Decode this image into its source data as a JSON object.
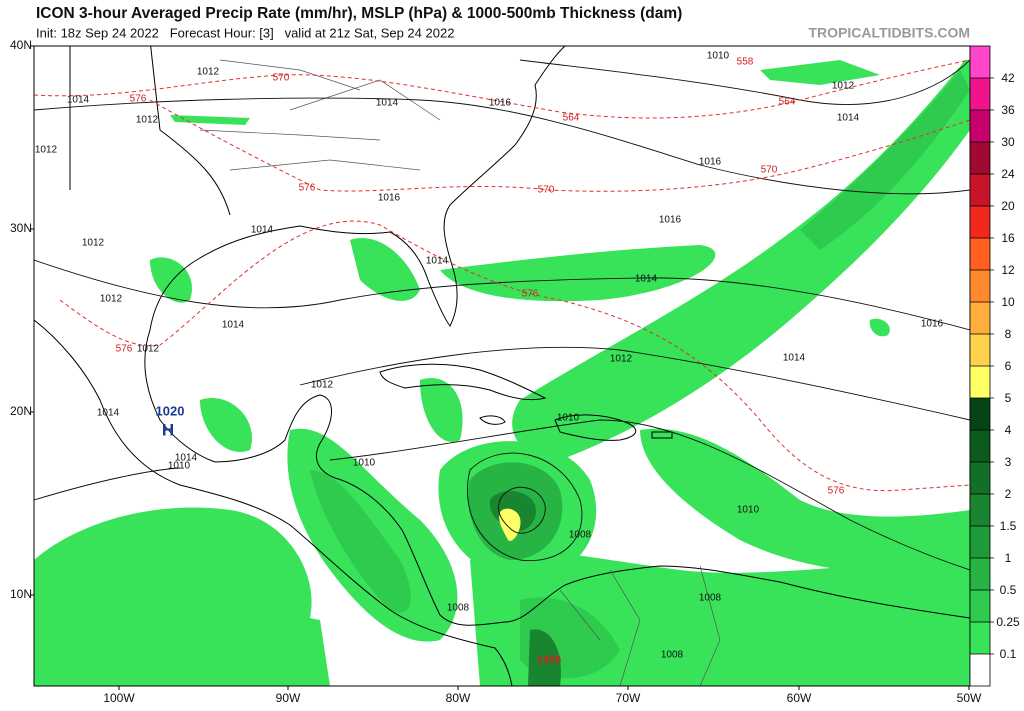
{
  "header": {
    "title": "ICON 3-hour Averaged Precip Rate (mm/hr), MSLP (hPa) & 1000-500mb Thickness (dam)",
    "subtitle": "Init: 18z Sep 24 2022   Forecast Hour: [3]   valid at 21z Sat, Sep 24 2022",
    "source": "TROPICALTIDBITS.COM"
  },
  "map": {
    "lat_labels": [
      "40N",
      "30N",
      "20N",
      "10N"
    ],
    "lon_labels": [
      "100W",
      "90W",
      "80W",
      "70W",
      "60W",
      "50W"
    ],
    "isobar_labels": [
      1012,
      1014,
      1012,
      1012,
      1014,
      1016,
      1010,
      1012,
      1014,
      1016,
      1016,
      1014,
      1016,
      1012,
      1014,
      1014,
      1012,
      1014,
      1016,
      1012,
      1014,
      1012,
      1014,
      1014,
      1012,
      1010,
      1010,
      1010,
      1010,
      1008,
      1008,
      1008,
      1008
    ],
    "thickness_labels": [
      576,
      570,
      558,
      564,
      564,
      570,
      570,
      576,
      576,
      576,
      576
    ],
    "low_label": 1006,
    "high_center": {
      "label": "H",
      "pressure": 1020
    }
  },
  "colorbar": {
    "ticks": [
      0.1,
      0.25,
      0.5,
      1,
      1.5,
      2,
      3,
      4,
      5,
      6,
      8,
      10,
      12,
      16,
      20,
      24,
      30,
      36,
      42
    ],
    "colors": [
      "#ffffff",
      "#38e35a",
      "#2ecb4e",
      "#27b444",
      "#1f9c39",
      "#198530",
      "#136e27",
      "#0d5a1f",
      "#064417",
      "#ffff66",
      "#ffd24d",
      "#ffae3c",
      "#ff8a2d",
      "#ff6020",
      "#f0281e",
      "#c81428",
      "#a00a32",
      "#c8006e",
      "#f0148c",
      "#ff46c8"
    ]
  }
}
